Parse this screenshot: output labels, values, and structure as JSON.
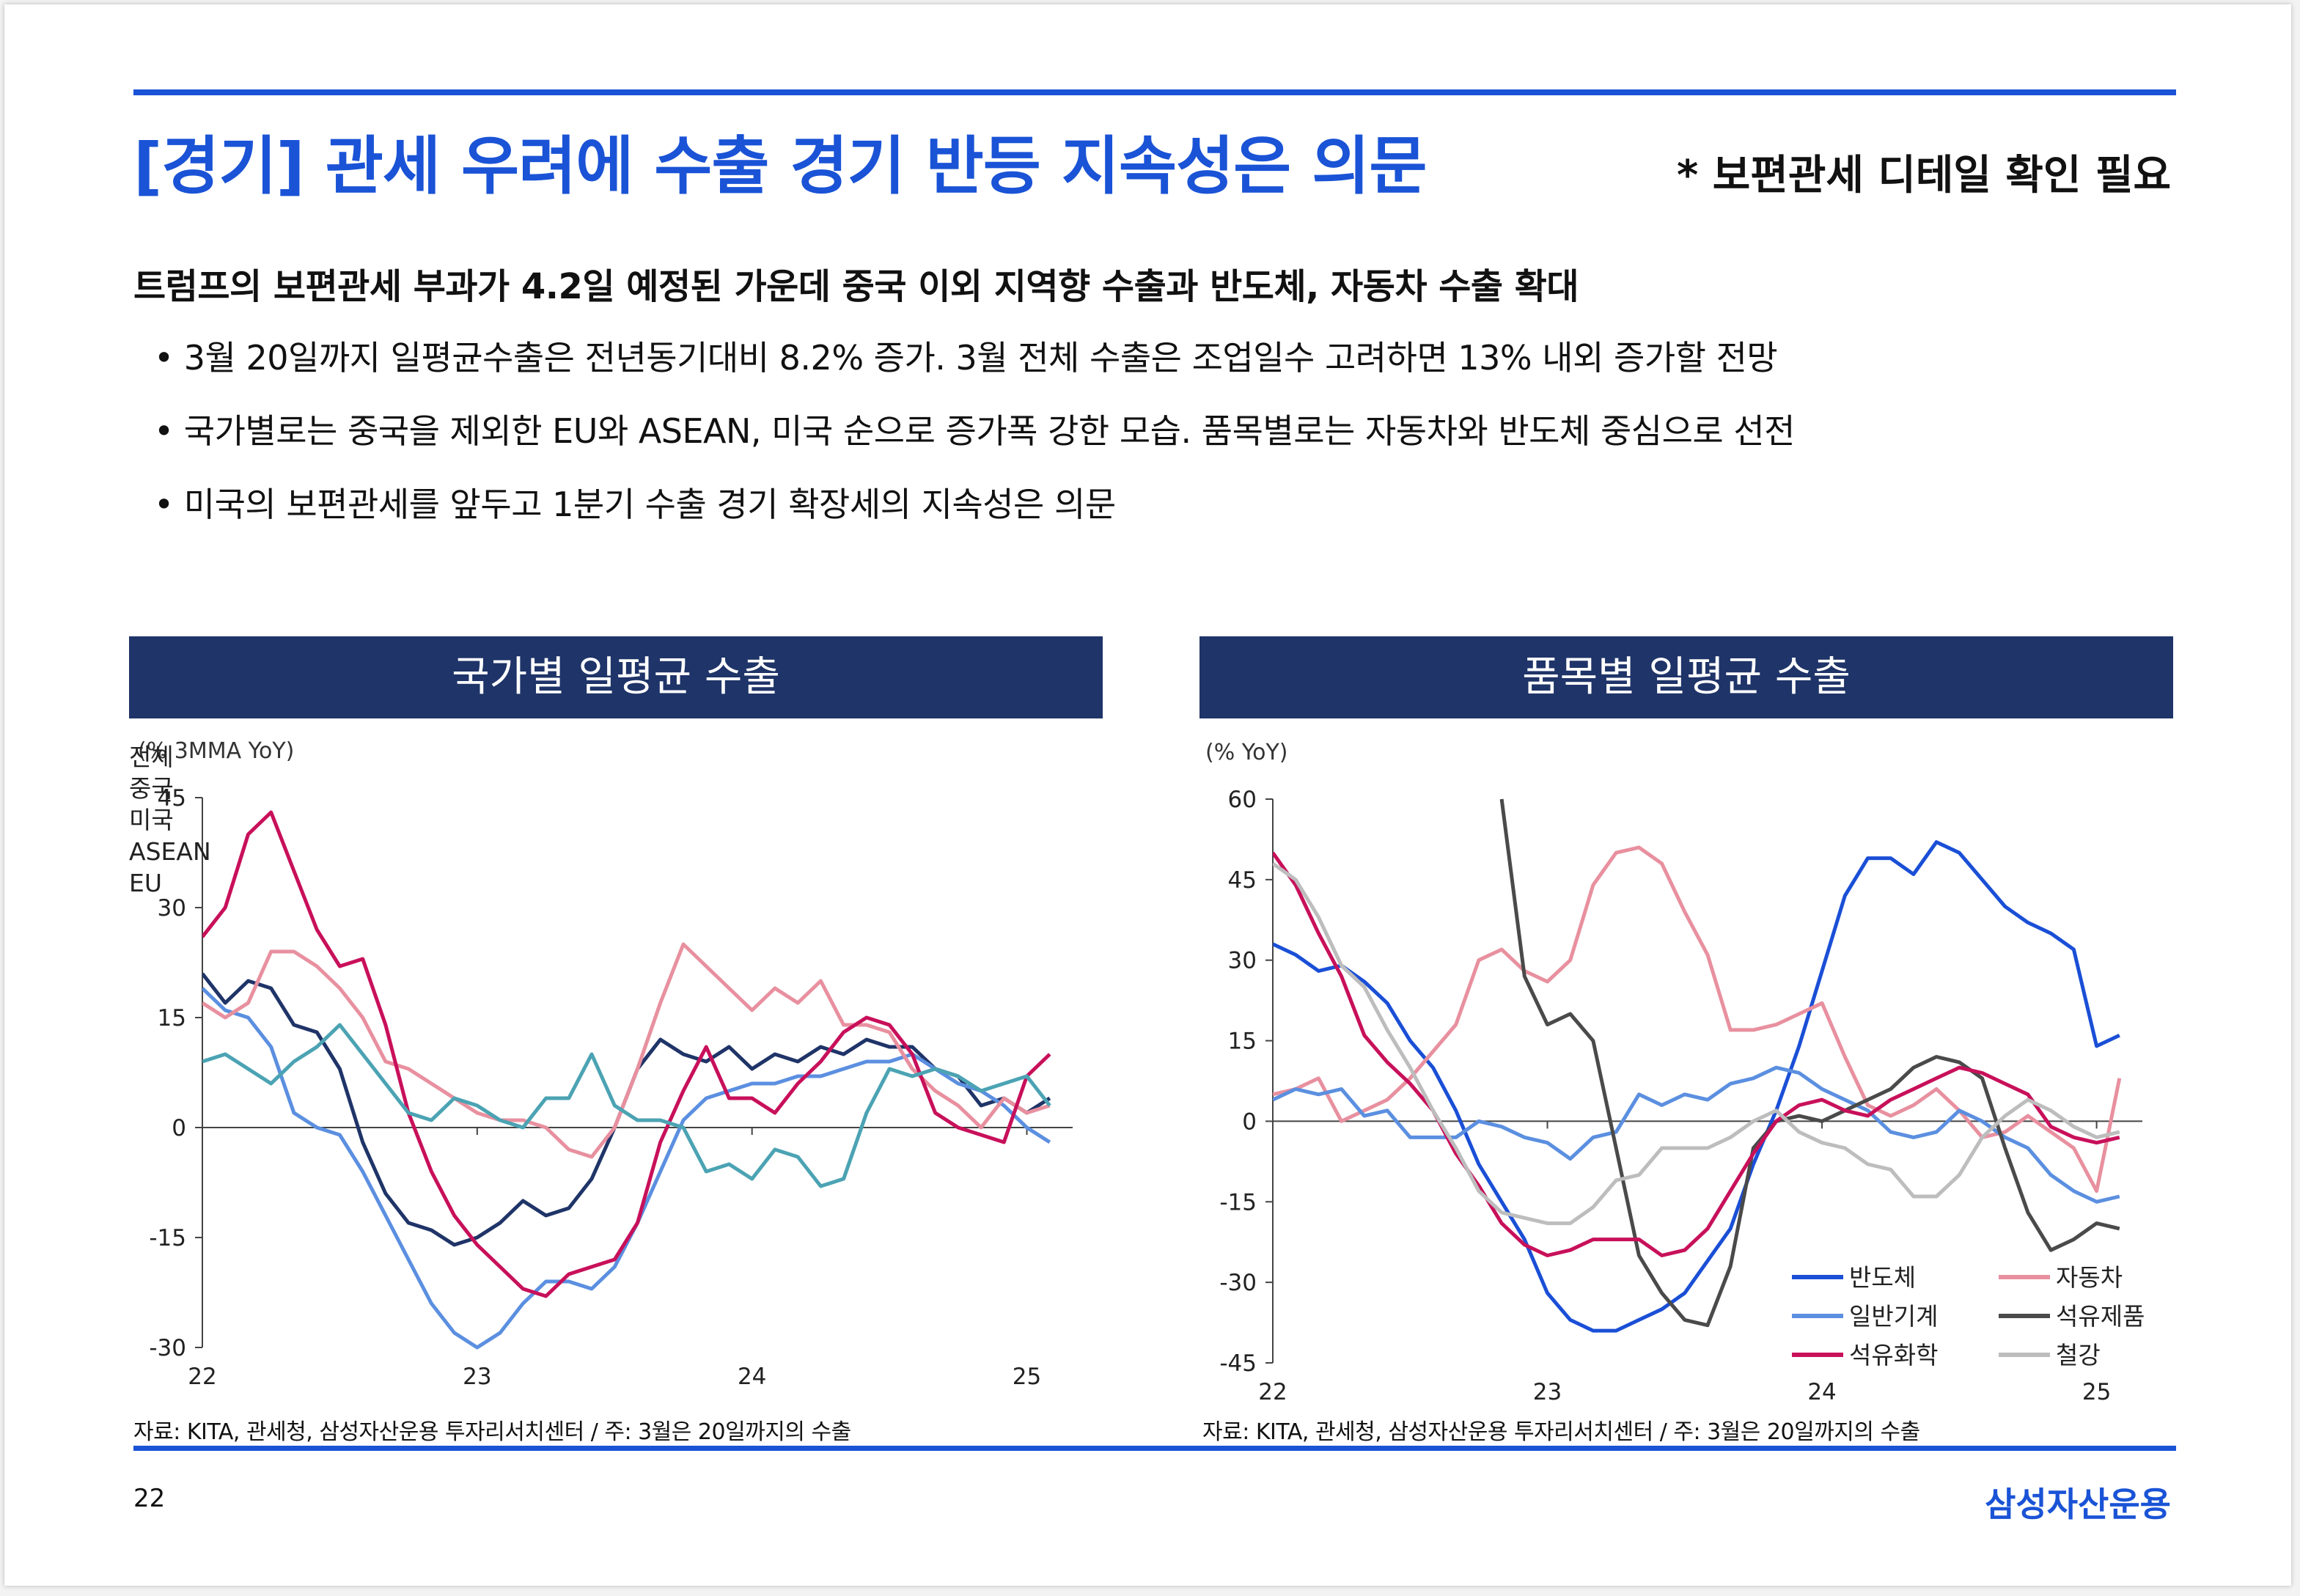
{
  "header": {
    "title": "[경기] 관세 우려에 수출 경기 반등 지속성은 의문",
    "note": "* 보편관세 디테일 확인 필요"
  },
  "summary": {
    "lead": "트럼프의 보편관세 부과가 4.2일 예정된 가운데 중국 이외 지역향 수출과 반도체, 자동차 수출 확대",
    "bullets": [
      "• 3월 20일까지 일평균수출은 전년동기대비 8.2% 증가. 3월 전체 수출은 조업일수 고려하면 13% 내외 증가할 전망",
      "• 국가별로는 중국을 제외한 EU와 ASEAN, 미국 순으로 증가폭 강한 모습. 품목별로는 자동차와 반도체 중심으로 선전",
      "• 미국의 보편관세를 앞두고 1분기 수출 경기 확장세의 지속성은 의문"
    ]
  },
  "colors": {
    "accent": "#1a53d6",
    "panel_header": "#1f3468",
    "navy": "#1f3468",
    "blue": "#5b8fe0",
    "pink": "#e8909f",
    "crimson": "#c8105a",
    "teal": "#4ba3b3",
    "strong_blue": "#1a4fd6",
    "dark_gray": "#4a4a4a",
    "light_gray": "#bdbdbd"
  },
  "charts": {
    "left": {
      "header": "국가별 일평균 수출",
      "source": "자료: KITA, 관세청, 삼성자산운용 투자리서치센터 / 주: 3월은 20일까지의 수출"
    },
    "right": {
      "header": "품목별 일평균 수출",
      "source": "자료: KITA, 관세청, 삼성자산운용 투자리서치센터 / 주: 3월은 20일까지의 수출"
    }
  },
  "chart_data": [
    {
      "type": "line",
      "title": "국가별 일평균 수출",
      "ylabel": "(% 3MMA YoY)",
      "xlabel": "",
      "ylim": [
        -30,
        45
      ],
      "yticks": [
        45,
        30,
        15,
        0,
        -15,
        -30
      ],
      "xlim": [
        0,
        38
      ],
      "xticks": [
        {
          "x": 0,
          "label": "22"
        },
        {
          "x": 12,
          "label": "23"
        },
        {
          "x": 24,
          "label": "24"
        },
        {
          "x": 36,
          "label": "25"
        }
      ],
      "legend_position": "top-right",
      "series": [
        {
          "name": "전체",
          "color": "#1f3468",
          "values": [
            21,
            17,
            20,
            19,
            14,
            13,
            8,
            -2,
            -9,
            -13,
            -14,
            -16,
            -15,
            -13,
            -10,
            -12,
            -11,
            -7,
            0,
            8,
            12,
            10,
            9,
            11,
            8,
            10,
            9,
            11,
            10,
            12,
            11,
            11,
            8,
            7,
            3,
            4,
            2,
            4
          ]
        },
        {
          "name": "중국",
          "color": "#5b8fe0",
          "values": [
            19,
            16,
            15,
            11,
            2,
            0,
            -1,
            -6,
            -12,
            -18,
            -24,
            -28,
            -30,
            -28,
            -24,
            -21,
            -21,
            -22,
            -19,
            -13,
            -6,
            1,
            4,
            5,
            6,
            6,
            7,
            7,
            8,
            9,
            9,
            10,
            8,
            6,
            5,
            3,
            0,
            -2
          ]
        },
        {
          "name": "미국",
          "color": "#e8909f",
          "values": [
            17,
            15,
            17,
            24,
            24,
            22,
            19,
            15,
            9,
            8,
            6,
            4,
            2,
            1,
            1,
            0,
            -3,
            -4,
            0,
            8,
            17,
            25,
            22,
            19,
            16,
            19,
            17,
            20,
            14,
            14,
            13,
            8,
            5,
            3,
            0,
            4,
            2,
            3
          ]
        },
        {
          "name": "ASEAN",
          "color": "#c8105a",
          "values": [
            26,
            30,
            40,
            43,
            35,
            27,
            22,
            23,
            14,
            2,
            -6,
            -12,
            -16,
            -19,
            -22,
            -23,
            -20,
            -19,
            -18,
            -13,
            -2,
            5,
            11,
            4,
            4,
            2,
            6,
            9,
            13,
            15,
            14,
            10,
            2,
            0,
            -1,
            -2,
            7,
            10
          ]
        },
        {
          "name": "EU",
          "color": "#4ba3b3",
          "values": [
            9,
            10,
            8,
            6,
            9,
            11,
            14,
            10,
            6,
            2,
            1,
            4,
            3,
            1,
            0,
            4,
            4,
            10,
            3,
            1,
            1,
            0,
            -6,
            -5,
            -7,
            -3,
            -4,
            -8,
            -7,
            2,
            8,
            7,
            8,
            7,
            5,
            6,
            7,
            3
          ]
        }
      ]
    },
    {
      "type": "line",
      "title": "품목별 일평균 수출",
      "ylabel": "(% YoY)",
      "xlabel": "",
      "ylim": [
        -45,
        60
      ],
      "yticks": [
        60,
        45,
        30,
        15,
        0,
        -15,
        -30,
        -45
      ],
      "xlim": [
        0,
        38
      ],
      "xticks": [
        {
          "x": 0,
          "label": "22"
        },
        {
          "x": 12,
          "label": "23"
        },
        {
          "x": 24,
          "label": "24"
        },
        {
          "x": 36,
          "label": "25"
        }
      ],
      "legend_position": "bottom-right",
      "series": [
        {
          "name": "반도체",
          "color": "#1a4fd6",
          "values": [
            33,
            31,
            28,
            29,
            26,
            22,
            15,
            10,
            2,
            -8,
            -15,
            -22,
            -32,
            -37,
            -39,
            -39,
            -37,
            -35,
            -32,
            -26,
            -20,
            -8,
            2,
            14,
            28,
            42,
            49,
            49,
            46,
            52,
            50,
            45,
            40,
            37,
            35,
            32,
            14,
            16
          ]
        },
        {
          "name": "자동차",
          "color": "#e8909f",
          "values": [
            5,
            6,
            8,
            0,
            2,
            4,
            8,
            13,
            18,
            30,
            32,
            28,
            26,
            30,
            44,
            50,
            51,
            48,
            39,
            31,
            17,
            17,
            18,
            20,
            22,
            12,
            3,
            1,
            3,
            6,
            2,
            -3,
            -2,
            1,
            -2,
            -5,
            -13,
            8
          ]
        },
        {
          "name": "일반기계",
          "color": "#5b8fe0",
          "values": [
            4,
            6,
            5,
            6,
            1,
            2,
            -3,
            -3,
            -3,
            0,
            -1,
            -3,
            -4,
            -7,
            -3,
            -2,
            5,
            3,
            5,
            4,
            7,
            8,
            10,
            9,
            6,
            4,
            2,
            -2,
            -3,
            -2,
            2,
            0,
            -3,
            -5,
            -10,
            -13,
            -15,
            -14
          ]
        },
        {
          "name": "석유제품",
          "color": "#4a4a4a",
          "values": [
            null,
            null,
            null,
            null,
            null,
            null,
            null,
            null,
            null,
            null,
            60,
            27,
            18,
            20,
            15,
            -5,
            -25,
            -32,
            -37,
            -38,
            -27,
            -5,
            0,
            1,
            0,
            2,
            4,
            6,
            10,
            12,
            11,
            8,
            -5,
            -17,
            -24,
            -22,
            -19,
            -20
          ]
        },
        {
          "name": "석유화학",
          "color": "#c8105a",
          "values": [
            50,
            44,
            35,
            27,
            16,
            11,
            7,
            2,
            -6,
            -12,
            -19,
            -23,
            -25,
            -24,
            -22,
            -22,
            -22,
            -25,
            -24,
            -20,
            -13,
            -6,
            0,
            3,
            4,
            2,
            1,
            4,
            6,
            8,
            10,
            9,
            7,
            5,
            -1,
            -3,
            -4,
            -3
          ]
        },
        {
          "name": "철강",
          "color": "#bdbdbd",
          "values": [
            48,
            45,
            38,
            29,
            25,
            17,
            10,
            2,
            -5,
            -13,
            -17,
            -18,
            -19,
            -19,
            -16,
            -11,
            -10,
            -5,
            -5,
            -5,
            -3,
            0,
            2,
            -2,
            -4,
            -5,
            -8,
            -9,
            -14,
            -14,
            -10,
            -3,
            1,
            4,
            2,
            -1,
            -3,
            -2
          ]
        }
      ]
    }
  ],
  "footer": {
    "page_number": "22",
    "brand": "삼성자산운용"
  }
}
